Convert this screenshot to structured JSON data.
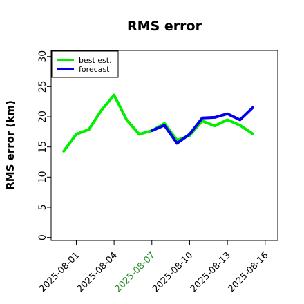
{
  "chart_data": {
    "type": "line",
    "title": "RMS error",
    "xlabel": "",
    "ylabel": "RMS error (km)",
    "x_start": "2025-07-31",
    "xlim": [
      "2025-07-30",
      "2025-08-17"
    ],
    "ylim": [
      -0.5,
      31
    ],
    "yticks": [
      "0",
      "5",
      "10",
      "15",
      "20",
      "25",
      "30"
    ],
    "xticks": [
      {
        "label": "2025-08-01",
        "color": "#000000"
      },
      {
        "label": "2025-08-04",
        "color": "#000000"
      },
      {
        "label": "2025-08-07",
        "color": "#228b22"
      },
      {
        "label": "2025-08-10",
        "color": "#000000"
      },
      {
        "label": "2025-08-13",
        "color": "#000000"
      },
      {
        "label": "2025-08-16",
        "color": "#000000"
      }
    ],
    "grid": false,
    "legend_position": "top-left",
    "series": [
      {
        "name": "best est.",
        "color": "#00ee00",
        "x": [
          "2025-07-31",
          "2025-08-01",
          "2025-08-02",
          "2025-08-03",
          "2025-08-04",
          "2025-08-05",
          "2025-08-06",
          "2025-08-07",
          "2025-08-08",
          "2025-08-09",
          "2025-08-10",
          "2025-08-11",
          "2025-08-12",
          "2025-08-13",
          "2025-08-14",
          "2025-08-15"
        ],
        "values": [
          14.3,
          17.1,
          17.9,
          21.1,
          23.6,
          19.5,
          17.1,
          17.7,
          18.9,
          16.1,
          16.9,
          19.3,
          18.5,
          19.5,
          18.6,
          17.2
        ]
      },
      {
        "name": "forecast",
        "color": "#0000ee",
        "x": [
          "2025-08-07",
          "2025-08-08",
          "2025-08-09",
          "2025-08-10",
          "2025-08-11",
          "2025-08-12",
          "2025-08-13",
          "2025-08-14",
          "2025-08-15"
        ],
        "values": [
          17.7,
          18.6,
          15.6,
          17.1,
          19.8,
          19.9,
          20.5,
          19.5,
          21.5
        ]
      }
    ]
  }
}
